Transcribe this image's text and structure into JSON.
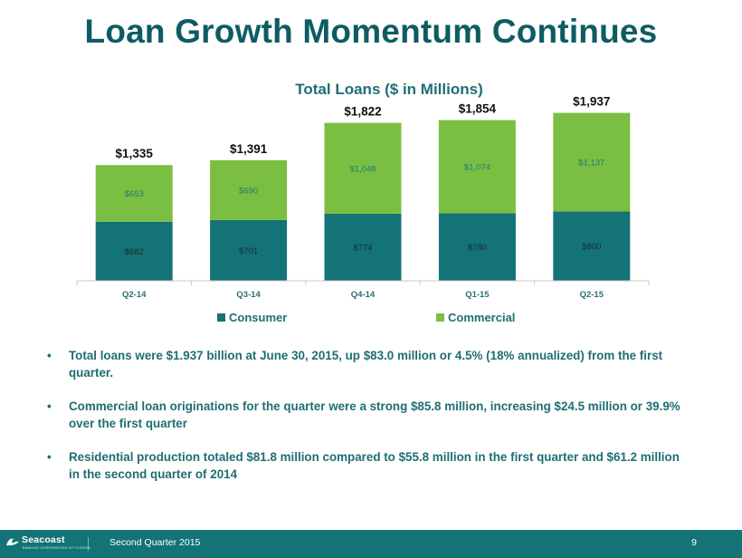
{
  "slide": {
    "title": "Loan Growth Momentum Continues"
  },
  "chart_data": {
    "type": "bar",
    "stacked": true,
    "title": "Total Loans ($ in Millions)",
    "categories": [
      "Q2-14",
      "Q3-14",
      "Q4-14",
      "Q1-15",
      "Q2-15"
    ],
    "series": [
      {
        "name": "Consumer",
        "values": [
          682,
          701,
          774,
          780,
          800
        ],
        "labels": [
          "$682",
          "$701",
          "$774",
          "$780",
          "$800"
        ],
        "color": "#137377"
      },
      {
        "name": "Commercial",
        "values": [
          653,
          690,
          1048,
          1074,
          1137
        ],
        "labels": [
          "$653",
          "$690",
          "$1,048",
          "$1,074",
          "$1,137"
        ],
        "color": "#7bbf42"
      }
    ],
    "totals": [
      "$1,335",
      "$1,391",
      "$1,822",
      "$1,854",
      "$1,937"
    ],
    "ylim": [
      0,
      2000
    ],
    "legend_position": "bottom",
    "grid": false
  },
  "bullets": [
    "Total loans were $1.937 billion at June 30, 2015, up $83.0 million or 4.5% (18% annualized) from the first quarter.",
    "Commercial loan originations for the quarter were a strong $85.8 million, increasing $24.5 million or 39.9% over the first quarter",
    "Residential production totaled $81.8 million compared to $55.8 million in the first quarter and $61.2 million in the second quarter of 2014"
  ],
  "footer": {
    "logo_name": "Seacoast",
    "logo_sub": "BANKING CORPORATION OF FLORIDA",
    "text": "Second Quarter 2015",
    "page_number": "9"
  }
}
